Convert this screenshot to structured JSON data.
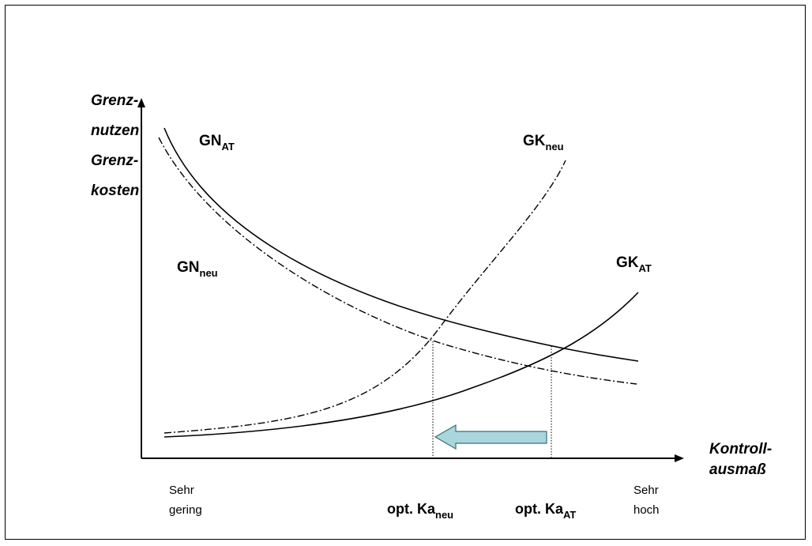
{
  "y_axis": {
    "label_line1": "Grenz-",
    "label_line2": "nutzen",
    "label_line3": "Grenz-",
    "label_line4": "kosten"
  },
  "x_axis": {
    "label_line1": "Kontroll-",
    "label_line2": "ausmaß",
    "left_tick_line1": "Sehr",
    "left_tick_line2": "gering",
    "right_tick_line1": "Sehr",
    "right_tick_line2": "hoch"
  },
  "curves": {
    "gn_at": {
      "main": "GN",
      "sub": "AT"
    },
    "gn_neu": {
      "main": "GN",
      "sub": "neu"
    },
    "gk_neu": {
      "main": "GK",
      "sub": "neu"
    },
    "gk_at": {
      "main": "GK",
      "sub": "AT"
    }
  },
  "optima": {
    "neu": {
      "main": "opt. Ka",
      "sub": "neu"
    },
    "at": {
      "main": "opt. Ka",
      "sub": "AT"
    }
  },
  "colors": {
    "arrow_fill": "#a9d6dc",
    "arrow_stroke": "#3a6f7a",
    "line": "#000000"
  }
}
